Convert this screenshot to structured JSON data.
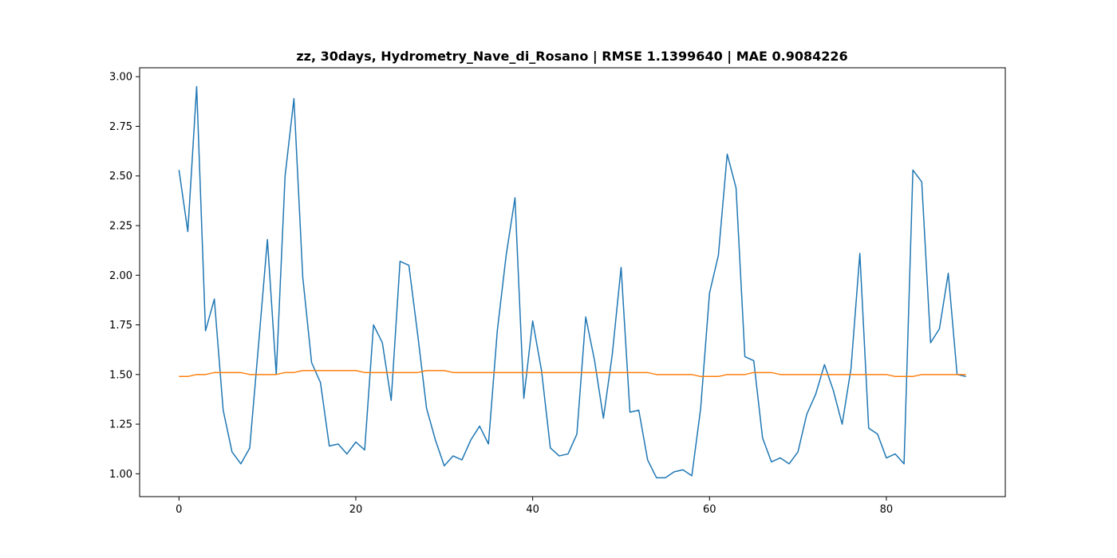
{
  "chart_data": {
    "type": "line",
    "title": "zz, 30days, Hydrometry_Nave_di_Rosano | RMSE 1.1399640 | MAE 0.9084226",
    "xlabel": "",
    "ylabel": "",
    "xlim": [
      -4.45,
      93.45
    ],
    "ylim": [
      0.885,
      3.045
    ],
    "x_ticks": [
      0,
      20,
      40,
      60,
      80
    ],
    "y_ticks": [
      1.0,
      1.25,
      1.5,
      1.75,
      2.0,
      2.25,
      2.5,
      2.75,
      3.0
    ],
    "y_tick_labels": [
      "1.00",
      "1.25",
      "1.50",
      "1.75",
      "2.00",
      "2.25",
      "2.50",
      "2.75",
      "3.00"
    ],
    "grid": false,
    "legend": "none",
    "series": [
      {
        "color": "#1f77b4",
        "values": [
          2.53,
          2.22,
          2.95,
          1.72,
          1.88,
          1.32,
          1.11,
          1.05,
          1.13,
          1.65,
          2.18,
          1.5,
          2.5,
          2.89,
          1.99,
          1.56,
          1.46,
          1.14,
          1.15,
          1.1,
          1.16,
          1.12,
          1.75,
          1.66,
          1.37,
          2.07,
          2.05,
          1.7,
          1.33,
          1.17,
          1.04,
          1.09,
          1.07,
          1.17,
          1.24,
          1.15,
          1.72,
          2.1,
          2.39,
          1.38,
          1.77,
          1.52,
          1.13,
          1.09,
          1.1,
          1.2,
          1.79,
          1.57,
          1.28,
          1.6,
          2.04,
          1.31,
          1.32,
          1.07,
          0.98,
          0.98,
          1.01,
          1.02,
          0.99,
          1.33,
          1.91,
          2.1,
          2.61,
          2.44,
          1.59,
          1.57,
          1.18,
          1.06,
          1.08,
          1.05,
          1.11,
          1.3,
          1.4,
          1.55,
          1.42,
          1.25,
          1.53,
          2.11,
          1.23,
          1.2,
          1.08,
          1.1,
          1.05,
          2.53,
          2.47,
          1.66,
          1.73,
          2.01,
          1.5,
          1.49
        ]
      },
      {
        "color": "#ff7f0e",
        "values": [
          1.49,
          1.49,
          1.5,
          1.5,
          1.51,
          1.51,
          1.51,
          1.51,
          1.5,
          1.5,
          1.5,
          1.5,
          1.51,
          1.51,
          1.52,
          1.52,
          1.52,
          1.52,
          1.52,
          1.52,
          1.52,
          1.51,
          1.51,
          1.51,
          1.51,
          1.51,
          1.51,
          1.51,
          1.52,
          1.52,
          1.52,
          1.51,
          1.51,
          1.51,
          1.51,
          1.51,
          1.51,
          1.51,
          1.51,
          1.51,
          1.51,
          1.51,
          1.51,
          1.51,
          1.51,
          1.51,
          1.51,
          1.51,
          1.51,
          1.51,
          1.51,
          1.51,
          1.51,
          1.51,
          1.5,
          1.5,
          1.5,
          1.5,
          1.5,
          1.49,
          1.49,
          1.49,
          1.5,
          1.5,
          1.5,
          1.51,
          1.51,
          1.51,
          1.5,
          1.5,
          1.5,
          1.5,
          1.5,
          1.5,
          1.5,
          1.5,
          1.5,
          1.5,
          1.5,
          1.5,
          1.5,
          1.49,
          1.49,
          1.49,
          1.5,
          1.5,
          1.5,
          1.5,
          1.5,
          1.5
        ]
      }
    ]
  }
}
